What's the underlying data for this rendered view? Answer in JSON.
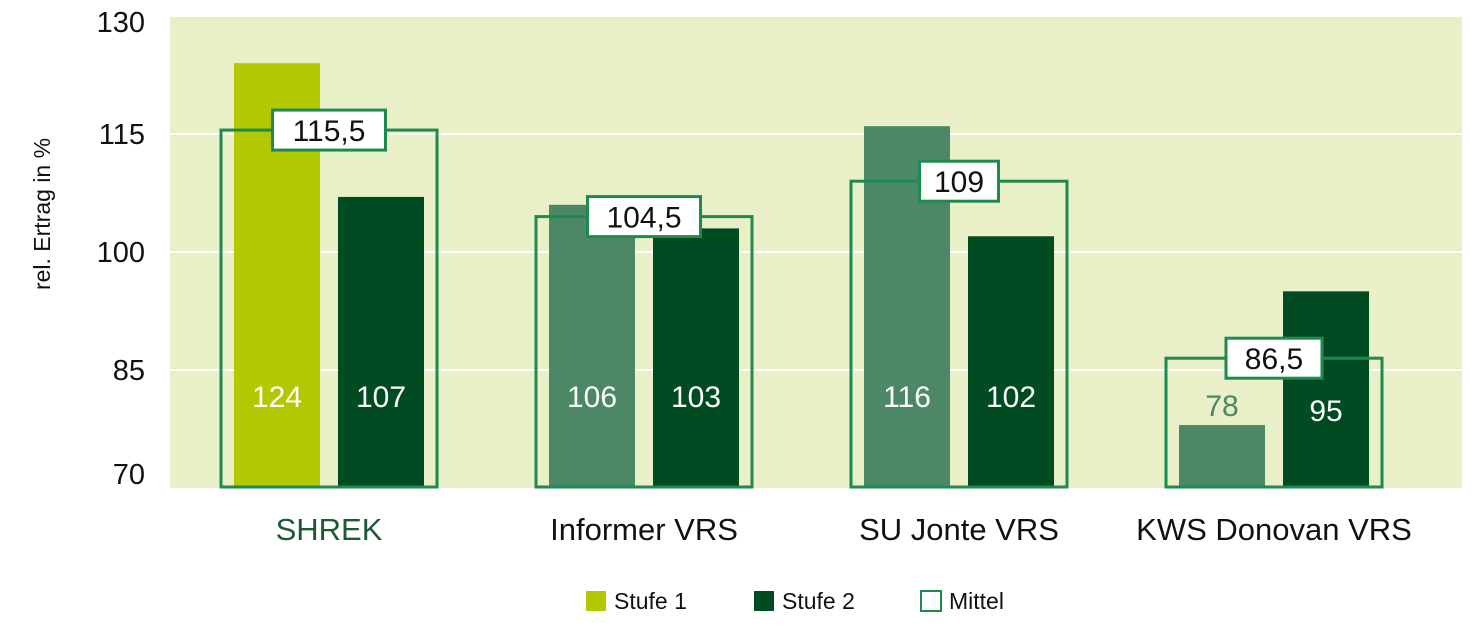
{
  "chart_data": {
    "type": "bar",
    "ylabel": "rel. Ertrag in %",
    "ylim": [
      70,
      130
    ],
    "yticks": [
      70,
      85,
      100,
      115,
      130
    ],
    "grid": true,
    "categories": [
      "SHREK",
      "Informer VRS",
      "SU Jonte VRS",
      "KWS Donovan VRS"
    ],
    "series": [
      {
        "name": "Stufe 1",
        "values": [
          124,
          106,
          116,
          78
        ]
      },
      {
        "name": "Stufe 2",
        "values": [
          107,
          103,
          102,
          95
        ]
      }
    ],
    "mean": {
      "name": "Mittel",
      "values": [
        115.5,
        104.5,
        109,
        86.5
      ],
      "labels": [
        "115,5",
        "104,5",
        "109",
        "86,5"
      ]
    },
    "legend_position": "bottom-center",
    "colors": {
      "plot_bg": "#e9f0c8",
      "grid": "#ffffff",
      "stufe1_highlight": "#b2c800",
      "stufe1": "#4c8866",
      "stufe2": "#004b22",
      "mittel": "#1e8a52",
      "highlight_text": "#1c5a35",
      "axis_text": "#111111"
    },
    "highlight_category": "SHREK"
  }
}
